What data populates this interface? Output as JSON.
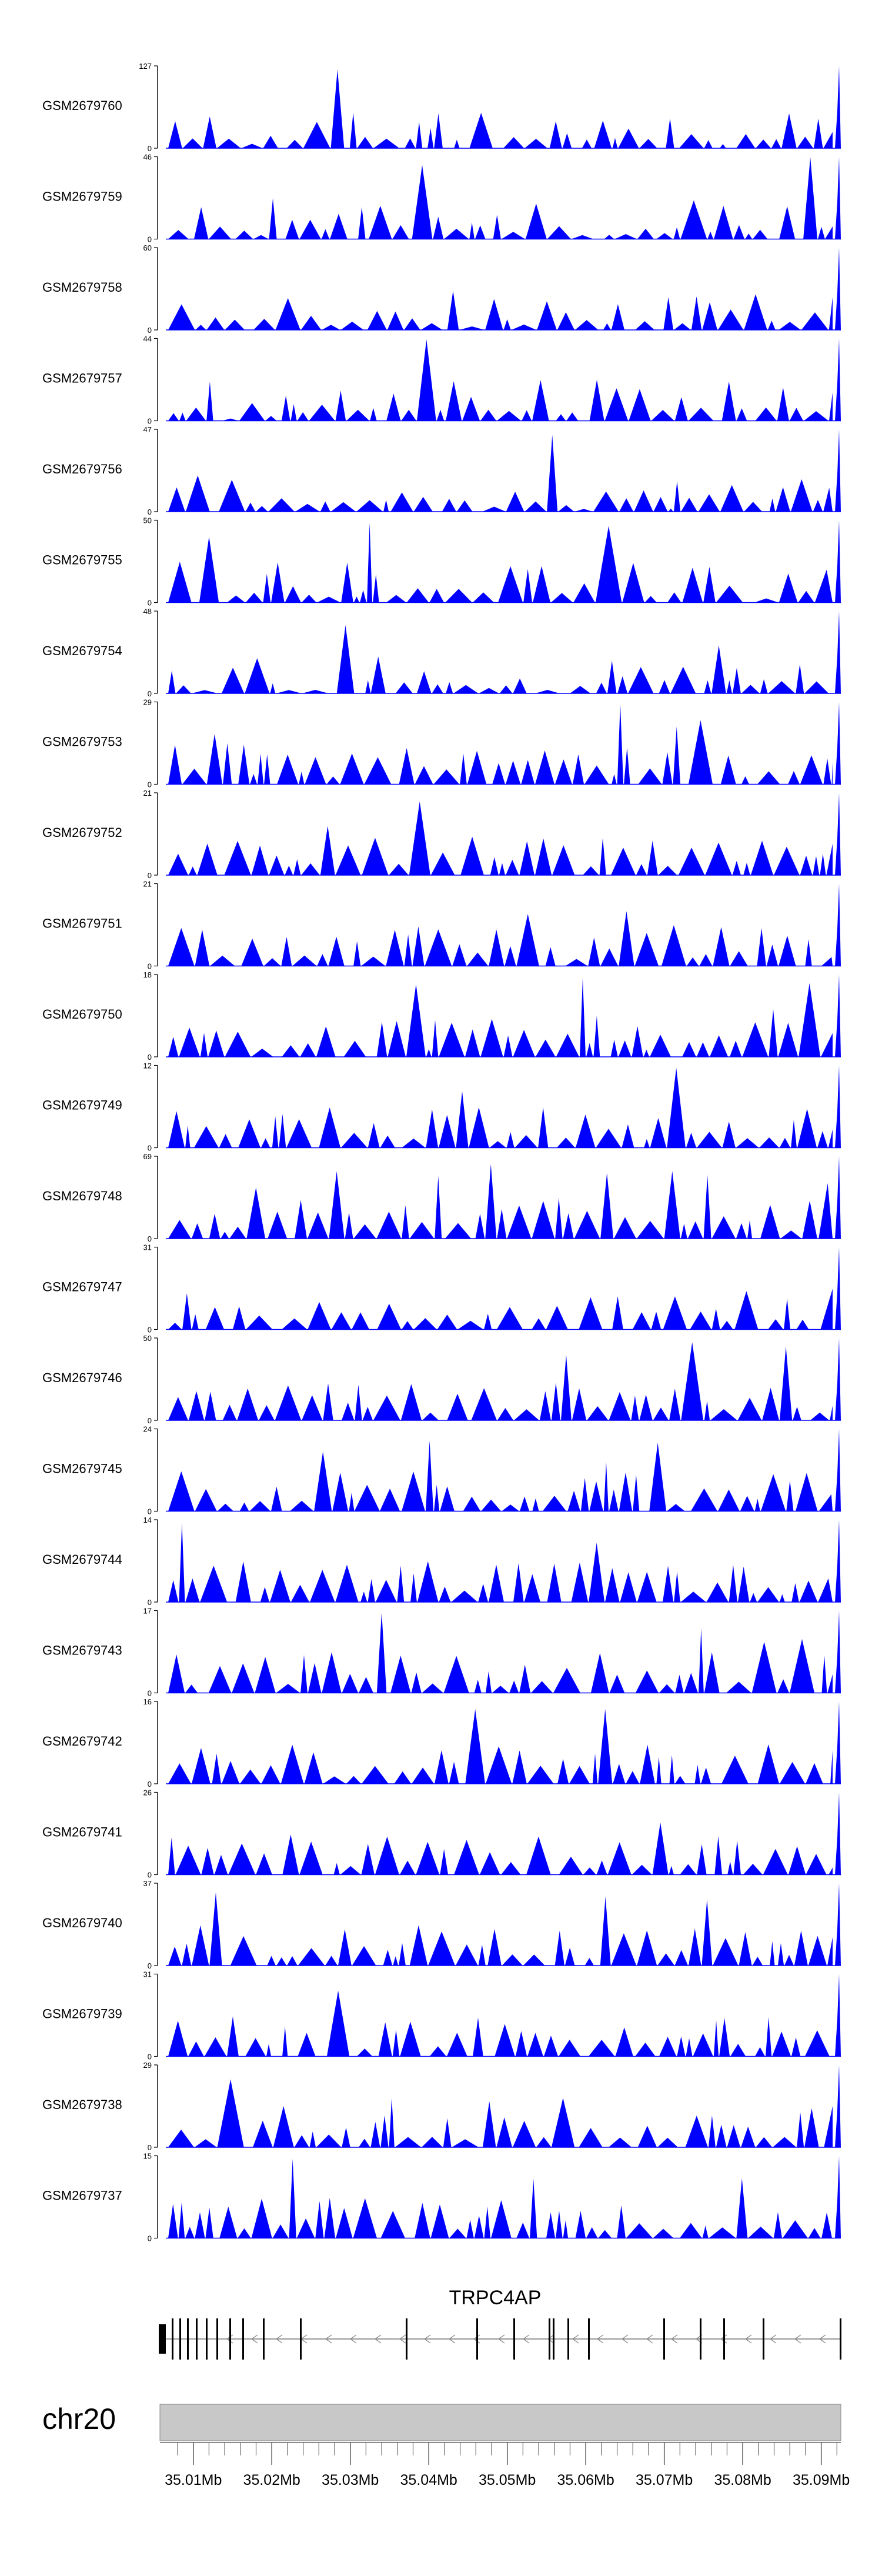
{
  "chart_data": {
    "type": "area",
    "chromosome": "chr20",
    "gene": {
      "name": "TRPC4AP",
      "strand": "-"
    },
    "x_ticks": [
      "35.01Mb",
      "35.02Mb",
      "35.03Mb",
      "35.04Mb",
      "35.05Mb",
      "35.06Mb",
      "35.07Mb",
      "35.08Mb",
      "35.09Mb"
    ],
    "x_tick_values": [
      35.01,
      35.02,
      35.03,
      35.04,
      35.05,
      35.06,
      35.07,
      35.08,
      35.09
    ],
    "xlim": [
      35.0065,
      35.0925
    ],
    "colors": {
      "signal": "#0000ff",
      "ideogram": "#c8c8c8"
    },
    "tracks": [
      {
        "name": "GSM2679760",
        "ymax": 127,
        "ymin": 0
      },
      {
        "name": "GSM2679759",
        "ymax": 46,
        "ymin": 0
      },
      {
        "name": "GSM2679758",
        "ymax": 60,
        "ymin": 0
      },
      {
        "name": "GSM2679757",
        "ymax": 44,
        "ymin": 0
      },
      {
        "name": "GSM2679756",
        "ymax": 47,
        "ymin": 0
      },
      {
        "name": "GSM2679755",
        "ymax": 50,
        "ymin": 0
      },
      {
        "name": "GSM2679754",
        "ymax": 48,
        "ymin": 0
      },
      {
        "name": "GSM2679753",
        "ymax": 29,
        "ymin": 0
      },
      {
        "name": "GSM2679752",
        "ymax": 21,
        "ymin": 0
      },
      {
        "name": "GSM2679751",
        "ymax": 21,
        "ymin": 0
      },
      {
        "name": "GSM2679750",
        "ymax": 18,
        "ymin": 0
      },
      {
        "name": "GSM2679749",
        "ymax": 12,
        "ymin": 0
      },
      {
        "name": "GSM2679748",
        "ymax": 69,
        "ymin": 0
      },
      {
        "name": "GSM2679747",
        "ymax": 31,
        "ymin": 0
      },
      {
        "name": "GSM2679746",
        "ymax": 50,
        "ymin": 0
      },
      {
        "name": "GSM2679745",
        "ymax": 24,
        "ymin": 0
      },
      {
        "name": "GSM2679744",
        "ymax": 14,
        "ymin": 0
      },
      {
        "name": "GSM2679743",
        "ymax": 17,
        "ymin": 0
      },
      {
        "name": "GSM2679742",
        "ymax": 16,
        "ymin": 0
      },
      {
        "name": "GSM2679741",
        "ymax": 26,
        "ymin": 0
      },
      {
        "name": "GSM2679740",
        "ymax": 37,
        "ymin": 0
      },
      {
        "name": "GSM2679739",
        "ymax": 31,
        "ymin": 0
      },
      {
        "name": "GSM2679738",
        "ymax": 29,
        "ymin": 0
      },
      {
        "name": "GSM2679737",
        "ymax": 15,
        "ymin": 0
      }
    ]
  }
}
